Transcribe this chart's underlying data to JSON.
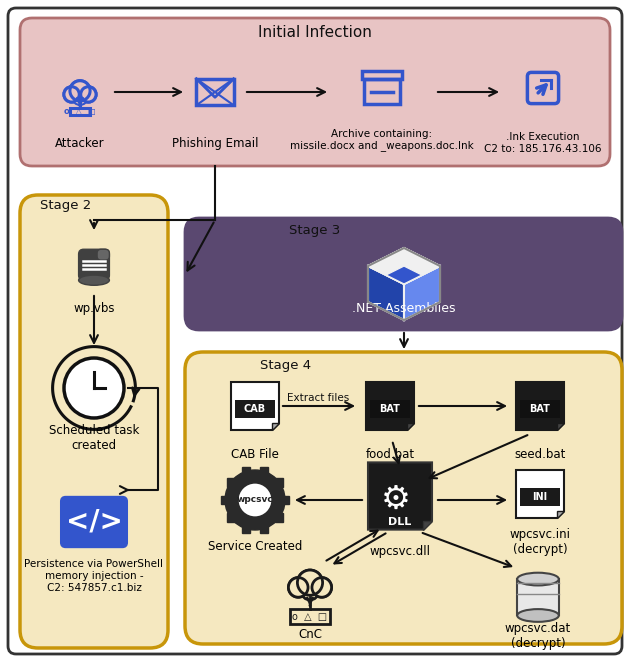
{
  "title": "Initial Infection",
  "stage2_label": "Stage 2",
  "stage3_label": "Stage 3",
  "stage4_label": "Stage 4",
  "bg_color": "#ffffff",
  "initial_infection_box_color": "#e8c4c4",
  "initial_infection_box_edge": "#b07070",
  "stage2_box_color": "#f5e8c0",
  "stage2_box_edge": "#c8960a",
  "stage3_box_color": "#5a4870",
  "stage3_box_edge": "#5a4870",
  "stage4_box_color": "#f5e8c0",
  "stage4_box_edge": "#c8960a",
  "arrow_color": "#111111",
  "text_color": "#111111",
  "icon_blue": "#3355cc",
  "icon_dark": "#333333"
}
